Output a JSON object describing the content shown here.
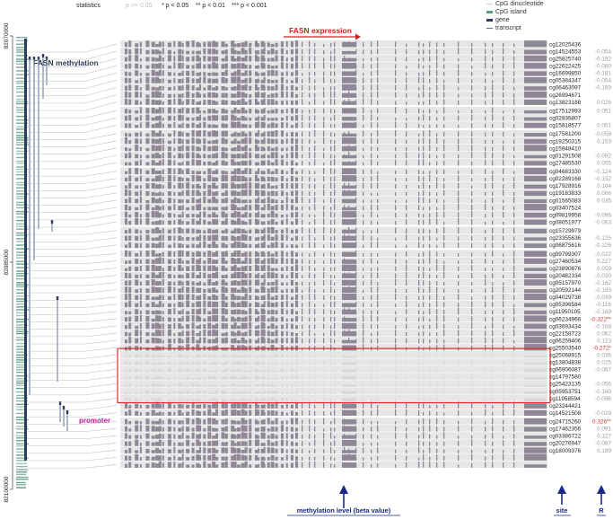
{
  "statistics": {
    "label": "statistics",
    "items": [
      {
        "text": "p >= 0.05",
        "muted": true
      },
      {
        "text": "* p < 0.05",
        "muted": false
      },
      {
        "text": "** p < 0.01",
        "muted": false
      },
      {
        "text": "*** p < 0.001",
        "muted": false
      }
    ]
  },
  "legend": [
    {
      "label": "CpG dinucleotide",
      "color": "#c9d4cc",
      "kind": "thin"
    },
    {
      "label": "CpG island",
      "color": "#5e9b86",
      "kind": "thick"
    },
    {
      "label": "gene",
      "color": "#2b3d59",
      "kind": "thick"
    },
    {
      "label": "transcript",
      "color": "#5a6f95",
      "kind": "thin"
    }
  ],
  "annotations": {
    "fasn_expression": "FASN expression",
    "fasn_methylation": "FASN methylation",
    "promoter": "promoter",
    "x_label": "methylation level (beta value)",
    "site_label": "site",
    "r_label": "R"
  },
  "colors": {
    "heat_bar": "#8e8795",
    "heat_bg": "#e6e6e6",
    "promoter_box": "#e02a2a",
    "significant": "#e02a2a",
    "nonsignificant": "#9a9a9a",
    "accent_title": "#d32020",
    "promoter_text": "#c0139a",
    "navy": "#1a2a8a"
  },
  "chart_data": {
    "type": "heatmap",
    "genomic_axis": {
      "ticks": [
        "82070000",
        "82085000",
        "82100000"
      ],
      "range": [
        82070000,
        82100000
      ]
    },
    "row_groups": [
      9,
      3,
      5,
      8,
      3,
      23,
      7
    ],
    "promoter_rows": [
      42,
      43,
      44,
      45,
      46,
      47,
      48
    ],
    "sites": [
      "cg12025436",
      "cg14524553",
      "cg25825740",
      "cg22622425",
      "cg16699850",
      "cg05384347",
      "cg06463097",
      "cg26994671",
      "cg13823188",
      "cg17512993",
      "cg02836807",
      "cg15818577",
      "cg17581200",
      "cg19250315",
      "cg15948410",
      "cg01291508",
      "cg27485530",
      "cg04683330",
      "cg02289168",
      "cg17928916",
      "cg19183833",
      "cg01565083",
      "cg03407524",
      "cg09819958",
      "cg08051977",
      "cg15729979",
      "cg23355636",
      "cg06875616",
      "cg09799307",
      "cg27460534",
      "cg23890876",
      "cg20482334",
      "cg05157970",
      "cg20592144",
      "cg04029738",
      "cg05396584",
      "cg11950105",
      "cg06234966",
      "cg03693434",
      "cg22158723",
      "cg06259406",
      "cg25503540",
      "cg25068915",
      "cg13804838",
      "cg06906087",
      "cg14797580",
      "cg25423135",
      "cg05953751",
      "cg11958594",
      "cg23244421",
      "cg14521508",
      "cg24715260",
      "cg17462356",
      "cg03386722",
      "cg20276947",
      "cg18009376"
    ],
    "r_values": [
      "",
      "-0.054",
      "-0.182",
      "-0.080",
      "-0.181",
      "-0.054",
      "-0.189",
      "",
      "0.026",
      "0.091",
      "",
      "0.001",
      "-0.058",
      "0.153",
      "",
      "-0.092",
      "0.055",
      "-0.124",
      "-0.152",
      "0.104",
      "0.066",
      "0.035",
      "",
      "-0.096",
      "-0.063",
      "",
      "-0.125",
      "-0.226",
      "-0.022",
      "0.227",
      "0.059",
      "-0.030",
      "-0.162",
      "-0.193",
      "-0.039",
      "-0.116",
      "-0.169",
      "-0.322**",
      "-0.168",
      "0.062",
      "0.123",
      "-0.272*",
      "0.036",
      "0.025",
      "-0.087",
      "",
      "-0.056",
      "-0.160",
      "-0.096",
      "",
      "-0.029",
      "0.326**",
      "0.091",
      "0.127",
      "-0.087",
      "0.189"
    ],
    "significant_sites": [
      "cg06234966",
      "cg25503540",
      "cg24715260"
    ],
    "xlabel": "methylation level (beta value)",
    "ylabel": ""
  }
}
